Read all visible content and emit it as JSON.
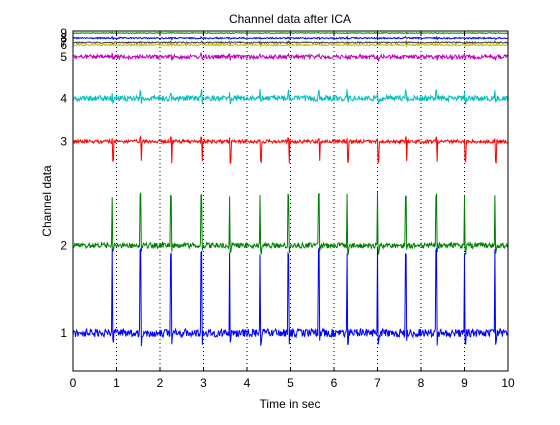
{
  "chart_data": {
    "type": "line",
    "title": "Channel data after ICA",
    "xlabel": "Time in sec",
    "ylabel": "Channel data",
    "xlim": [
      0,
      10
    ],
    "x_ticks": [
      "0",
      "1",
      "2",
      "3",
      "4",
      "5",
      "6",
      "7",
      "8",
      "9",
      "10"
    ],
    "grid": "x-dotted",
    "series": [
      {
        "name": "1",
        "color": "#0000ff",
        "baseline_frac": 0.888,
        "noise": 0.012,
        "spike_up": 0.24,
        "spike_down": 0.03
      },
      {
        "name": "2",
        "color": "#008000",
        "baseline_frac": 0.631,
        "noise": 0.008,
        "spike_up": 0.15,
        "spike_down": 0.02
      },
      {
        "name": "3",
        "color": "#ff0000",
        "baseline_frac": 0.325,
        "noise": 0.005,
        "spike_up": 0.01,
        "spike_down": 0.06
      },
      {
        "name": "4",
        "color": "#00bfbf",
        "baseline_frac": 0.198,
        "noise": 0.008,
        "spike_up": 0.02,
        "spike_down": 0.01
      },
      {
        "name": "5",
        "color": "#bf00bf",
        "baseline_frac": 0.076,
        "noise": 0.006,
        "spike_up": 0.006,
        "spike_down": 0.006
      },
      {
        "name": "6",
        "color": "#bfbf00",
        "baseline_frac": 0.041,
        "noise": 0.002,
        "spike_up": 0.002,
        "spike_down": 0.002
      },
      {
        "name": "7",
        "color": "#404040",
        "baseline_frac": 0.034,
        "noise": 0.002,
        "spike_up": 0.002,
        "spike_down": 0.002
      },
      {
        "name": "8",
        "color": "#0000ff",
        "baseline_frac": 0.021,
        "noise": 0.002,
        "spike_up": 0.002,
        "spike_down": 0.002
      },
      {
        "name": "9",
        "color": "#008000",
        "baseline_frac": 0.006,
        "noise": 0.001,
        "spike_up": 0.001,
        "spike_down": 0.001
      }
    ],
    "channel_labels": [
      {
        "text": "1",
        "frac": 0.888
      },
      {
        "text": "2",
        "frac": 0.631
      },
      {
        "text": "3",
        "frac": 0.325
      },
      {
        "text": "4",
        "frac": 0.198
      },
      {
        "text": "5",
        "frac": 0.076
      },
      {
        "text": "6",
        "frac": 0.041
      },
      {
        "text": "7",
        "frac": 0.034
      },
      {
        "text": "8",
        "frac": 0.021
      },
      {
        "text": "9",
        "frac": 0.006
      }
    ],
    "spike_times": [
      0.9,
      1.55,
      2.25,
      2.95,
      3.6,
      4.3,
      4.95,
      5.65,
      6.3,
      7.0,
      7.65,
      8.35,
      9.0,
      9.7
    ]
  }
}
